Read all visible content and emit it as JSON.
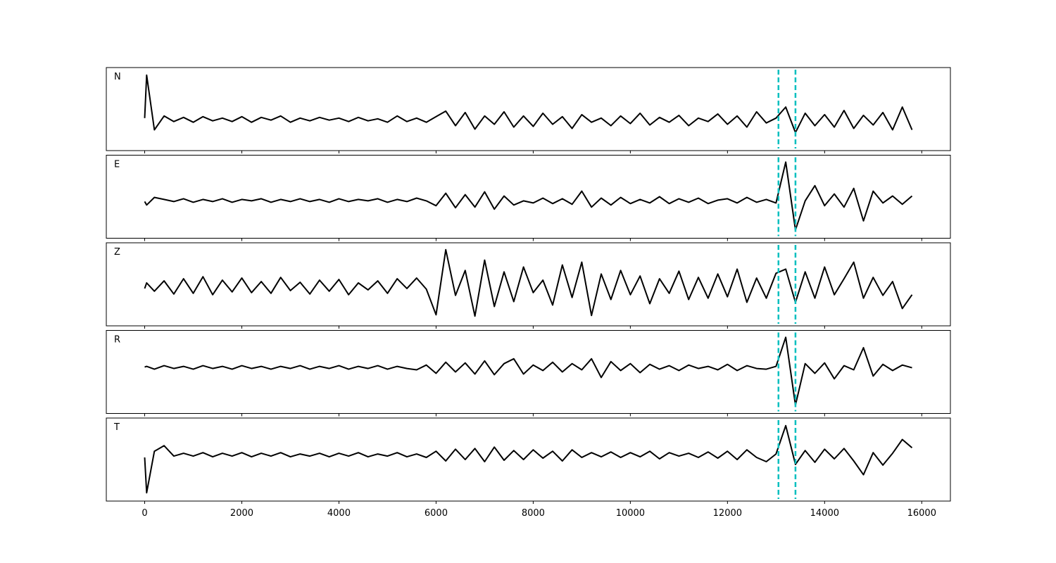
{
  "chart_data": {
    "type": "line",
    "subplots": true,
    "x": [
      0,
      40,
      200,
      400,
      600,
      800,
      1000,
      1200,
      1400,
      1600,
      1800,
      2000,
      2200,
      2400,
      2600,
      2800,
      3000,
      3200,
      3400,
      3600,
      3800,
      4000,
      4200,
      4400,
      4600,
      4800,
      5000,
      5200,
      5400,
      5600,
      5800,
      6000,
      6200,
      6400,
      6600,
      6800,
      7000,
      7200,
      7400,
      7600,
      7800,
      8000,
      8200,
      8400,
      8600,
      8800,
      9000,
      9200,
      9400,
      9600,
      9800,
      10000,
      10200,
      10400,
      10600,
      10800,
      11000,
      11200,
      11400,
      11600,
      11800,
      12000,
      12200,
      12400,
      12600,
      12800,
      13000,
      13200,
      13400,
      13600,
      13800,
      14000,
      14200,
      14400,
      14600,
      14800,
      15000,
      15200,
      15400,
      15600,
      15800
    ],
    "series": [
      {
        "name": "N",
        "color": "#000000",
        "values": [
          -1.3,
          4.9,
          -3.0,
          -1.0,
          -1.8,
          -1.2,
          -1.9,
          -1.1,
          -1.7,
          -1.3,
          -1.8,
          -1.1,
          -1.9,
          -1.2,
          -1.6,
          -1.0,
          -1.9,
          -1.3,
          -1.7,
          -1.2,
          -1.6,
          -1.3,
          -1.8,
          -1.2,
          -1.7,
          -1.4,
          -1.9,
          -1.0,
          -1.8,
          -1.3,
          -1.9,
          -1.1,
          -0.3,
          -2.4,
          -0.5,
          -2.9,
          -1.0,
          -2.2,
          -0.4,
          -2.6,
          -1.0,
          -2.5,
          -0.6,
          -2.2,
          -1.1,
          -2.8,
          -0.8,
          -1.9,
          -1.3,
          -2.4,
          -1.0,
          -2.1,
          -0.6,
          -2.3,
          -1.2,
          -1.9,
          -0.9,
          -2.4,
          -1.3,
          -1.8,
          -0.7,
          -2.2,
          -1.0,
          -2.6,
          -0.4,
          -2.0,
          -1.3,
          0.3,
          -3.4,
          -0.6,
          -2.4,
          -0.8,
          -2.6,
          -0.2,
          -2.8,
          -0.9,
          -2.3,
          -0.5,
          -3.0,
          0.3,
          -3.0
        ]
      },
      {
        "name": "E",
        "color": "#000000",
        "values": [
          -0.7,
          -1.2,
          -0.1,
          -0.4,
          -0.7,
          -0.3,
          -0.8,
          -0.4,
          -0.7,
          -0.3,
          -0.8,
          -0.4,
          -0.6,
          -0.3,
          -0.8,
          -0.4,
          -0.7,
          -0.3,
          -0.7,
          -0.4,
          -0.8,
          -0.3,
          -0.7,
          -0.4,
          -0.6,
          -0.3,
          -0.8,
          -0.4,
          -0.7,
          -0.2,
          -0.6,
          -1.3,
          0.5,
          -1.6,
          0.3,
          -1.5,
          0.7,
          -1.8,
          0.1,
          -1.2,
          -0.6,
          -0.9,
          -0.2,
          -1.0,
          -0.3,
          -1.1,
          0.8,
          -1.5,
          -0.2,
          -1.2,
          -0.1,
          -1.0,
          -0.4,
          -0.9,
          0.0,
          -1.0,
          -0.3,
          -0.8,
          -0.2,
          -1.0,
          -0.5,
          -0.3,
          -0.9,
          -0.1,
          -0.8,
          -0.4,
          -0.9,
          5.0,
          -4.8,
          -0.6,
          1.6,
          -1.3,
          0.4,
          -1.5,
          1.2,
          -3.5,
          0.8,
          -0.9,
          0.1,
          -1.1,
          0.1
        ]
      },
      {
        "name": "Z",
        "color": "#000000",
        "values": [
          -0.6,
          0.2,
          -1.0,
          0.5,
          -1.4,
          0.8,
          -1.3,
          1.1,
          -1.5,
          0.6,
          -1.1,
          0.9,
          -1.2,
          0.4,
          -1.3,
          1.0,
          -0.9,
          0.3,
          -1.4,
          0.6,
          -1.0,
          0.7,
          -1.5,
          0.2,
          -0.8,
          0.5,
          -1.3,
          0.8,
          -0.6,
          0.9,
          -0.7,
          -4.4,
          5.0,
          -1.6,
          2.0,
          -4.6,
          3.5,
          -3.2,
          1.8,
          -2.5,
          2.5,
          -1.2,
          0.6,
          -3.0,
          2.8,
          -1.9,
          3.2,
          -4.5,
          1.5,
          -2.2,
          2.0,
          -1.5,
          1.2,
          -2.8,
          0.8,
          -1.3,
          1.9,
          -2.2,
          1.0,
          -2.0,
          1.5,
          -1.8,
          2.2,
          -2.6,
          0.9,
          -2.0,
          1.6,
          2.2,
          -2.6,
          1.8,
          -2.0,
          2.5,
          -1.5,
          0.8,
          3.2,
          -2.0,
          1.0,
          -1.6,
          0.4,
          -3.5,
          -1.5
        ]
      },
      {
        "name": "R",
        "color": "#000000",
        "values": [
          0.7,
          0.8,
          0.4,
          0.9,
          0.5,
          0.8,
          0.4,
          0.9,
          0.5,
          0.8,
          0.4,
          0.9,
          0.5,
          0.8,
          0.4,
          0.8,
          0.5,
          0.9,
          0.4,
          0.8,
          0.5,
          0.9,
          0.4,
          0.8,
          0.5,
          0.9,
          0.4,
          0.8,
          0.5,
          0.3,
          1.0,
          -0.2,
          1.4,
          0.0,
          1.3,
          -0.3,
          1.6,
          -0.4,
          1.2,
          1.9,
          -0.3,
          1.0,
          0.2,
          1.4,
          0.0,
          1.2,
          0.3,
          1.9,
          -0.8,
          1.5,
          0.2,
          1.2,
          -0.1,
          1.1,
          0.4,
          0.9,
          0.2,
          1.0,
          0.5,
          0.8,
          0.3,
          1.1,
          0.2,
          0.9,
          0.5,
          0.4,
          0.8,
          5.0,
          -4.8,
          1.2,
          -0.2,
          1.3,
          -1.0,
          0.9,
          0.3,
          3.5,
          -0.6,
          1.1,
          0.2,
          1.0,
          0.6
        ]
      },
      {
        "name": "T",
        "color": "#000000",
        "values": [
          0.3,
          -4.8,
          1.2,
          2.0,
          0.5,
          0.9,
          0.5,
          1.0,
          0.4,
          0.9,
          0.5,
          1.0,
          0.4,
          0.9,
          0.5,
          1.0,
          0.4,
          0.8,
          0.5,
          0.9,
          0.4,
          0.9,
          0.5,
          1.0,
          0.4,
          0.8,
          0.5,
          1.0,
          0.4,
          0.8,
          0.3,
          1.2,
          -0.2,
          1.5,
          0.0,
          1.6,
          -0.3,
          1.8,
          -0.1,
          1.3,
          0.0,
          1.4,
          0.2,
          1.2,
          -0.2,
          1.4,
          0.3,
          1.0,
          0.4,
          1.1,
          0.3,
          1.0,
          0.4,
          1.2,
          0.1,
          1.0,
          0.5,
          0.9,
          0.3,
          1.1,
          0.2,
          1.2,
          0.0,
          1.4,
          0.3,
          -0.3,
          0.8,
          4.9,
          -0.7,
          1.3,
          -0.4,
          1.5,
          0.1,
          1.6,
          -0.2,
          -2.2,
          1.0,
          -0.8,
          0.9,
          2.9,
          1.7
        ]
      }
    ],
    "xlim": [
      -790,
      16590
    ],
    "xticks": [
      0,
      2000,
      4000,
      6000,
      8000,
      10000,
      12000,
      14000,
      16000
    ],
    "ylim": [
      -6,
      6
    ],
    "vlines": [
      13050,
      13400
    ],
    "vline_color": "#00bfbf",
    "vline_style": "dashed",
    "grid": false
  }
}
